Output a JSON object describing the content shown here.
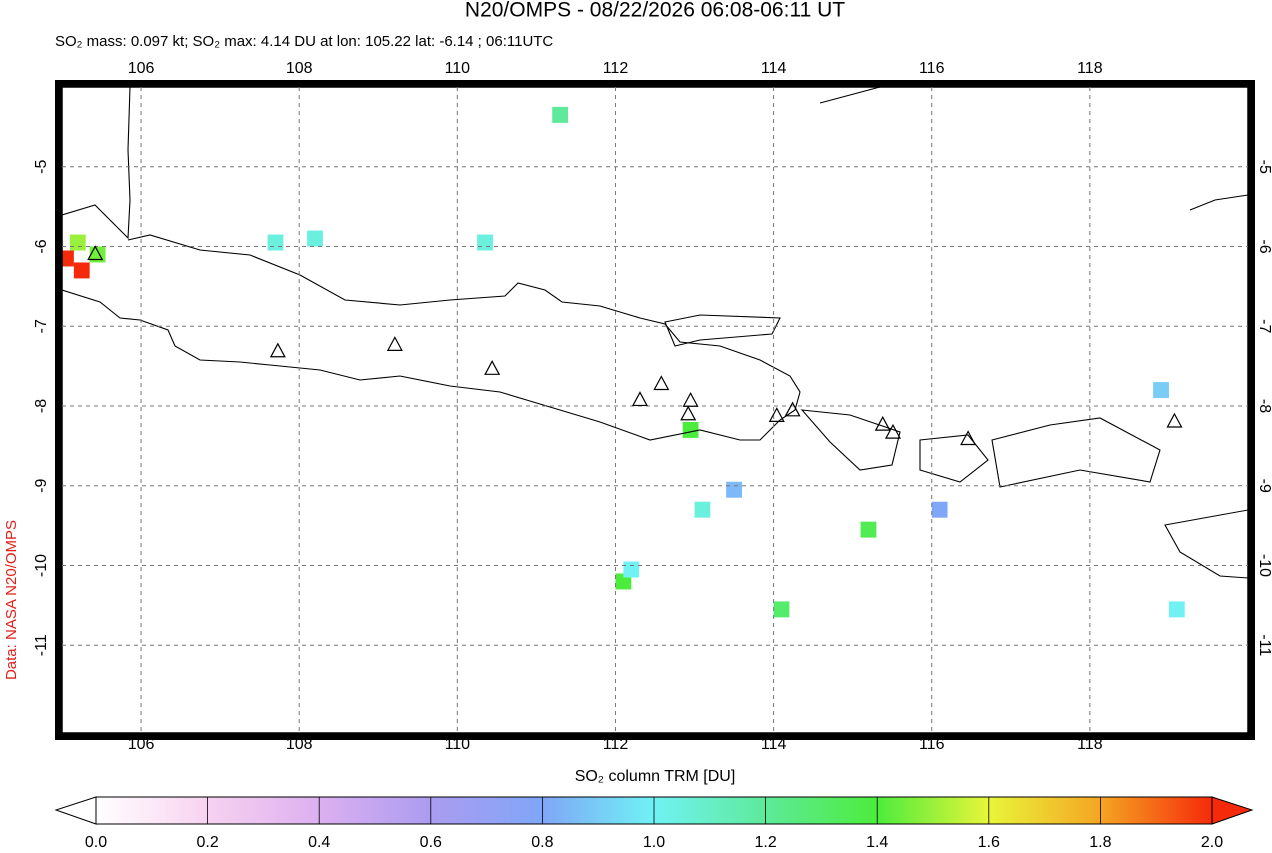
{
  "chart_data": {
    "type": "map",
    "title": "N20/OMPS - 08/22/2026 06:08-06:11 UT",
    "subtitle": "SO₂ mass: 0.097 kt; SO₂ max: 4.14 DU at lon: 105.22 lat: -6.14 ; 06:11UTC",
    "colorbar_label": "SO₂ column TRM [DU]",
    "credit": "Data: NASA N20/OMPS",
    "xlim": [
      105,
      120
    ],
    "ylim": [
      -12.1,
      -4
    ],
    "xticks": [
      106,
      108,
      110,
      112,
      114,
      116,
      118
    ],
    "yticks": [
      -5,
      -6,
      -7,
      -8,
      -9,
      -10,
      -11
    ],
    "grid": true,
    "clim": [
      0,
      2
    ],
    "cticks": [
      {
        "value": 0,
        "label": "0.0"
      },
      {
        "value": 0.2,
        "label": "0.2"
      },
      {
        "value": 0.4,
        "label": "0.4"
      },
      {
        "value": 0.6,
        "label": "0.6"
      },
      {
        "value": 0.8,
        "label": "0.8"
      },
      {
        "value": 1,
        "label": "1.0"
      },
      {
        "value": 1.2,
        "label": "1.2"
      },
      {
        "value": 1.4,
        "label": "1.4"
      },
      {
        "value": 1.6,
        "label": "1.6"
      },
      {
        "value": 1.8,
        "label": "1.8"
      },
      {
        "value": 2,
        "label": "2.0"
      }
    ],
    "colormap": [
      "#ffffff",
      "#f7d2f0",
      "#dcb0f0",
      "#ab9cf0",
      "#80a6f7",
      "#70f2f4",
      "#5eea9a",
      "#4cec3c",
      "#e8f53a",
      "#f5a523",
      "#f52a0a"
    ],
    "pixels": {
      "lon": [
        105.05,
        105.25,
        105.2,
        105.45,
        112.95,
        112.1,
        115.2,
        113.1,
        110.35,
        111.3,
        108.2,
        118.9,
        113.5,
        112.2,
        119.1,
        116.1,
        114.1,
        107.7
      ],
      "lat": [
        -6.15,
        -6.3,
        -5.95,
        -6.1,
        -8.3,
        -10.2,
        -9.55,
        -9.3,
        -5.95,
        -4.35,
        -5.9,
        -7.8,
        -9.05,
        -10.05,
        -10.55,
        -9.3,
        -10.55,
        -5.95
      ],
      "values": [
        2.0,
        2.0,
        1.5,
        1.45,
        1.4,
        1.4,
        1.35,
        1.05,
        1.05,
        1.2,
        1.05,
        0.9,
        0.85,
        1.0,
        1.0,
        0.8,
        1.3,
        1.05
      ]
    },
    "volcanoes": {
      "lon": [
        105.42,
        107.73,
        109.21,
        110.44,
        112.31,
        112.58,
        112.92,
        112.95,
        114.04,
        114.24,
        115.38,
        115.51,
        116.46,
        119.07
      ],
      "lat": [
        -6.1,
        -7.32,
        -7.24,
        -7.54,
        -7.93,
        -7.73,
        -8.11,
        -7.94,
        -8.13,
        -8.06,
        -8.24,
        -8.34,
        -8.42,
        -8.2
      ]
    }
  }
}
